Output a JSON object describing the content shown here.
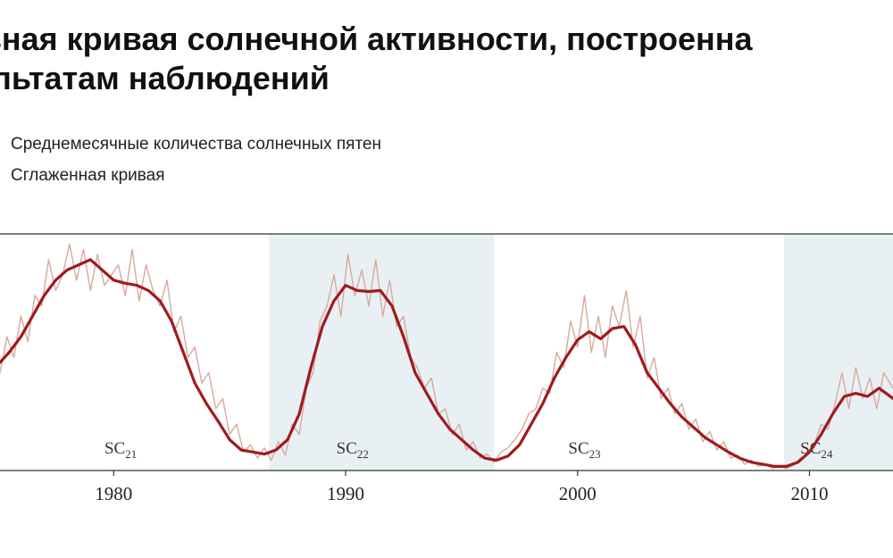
{
  "title_line1": "зная кривая солнечной активности, построенна",
  "title_line2": "льтатам наблюдений",
  "legend": {
    "raw": "Среднемесячные количества солнечных пятен",
    "smooth": "Сглаженная кривая"
  },
  "chart_data": {
    "type": "line",
    "title": "",
    "xlabel": "",
    "ylabel": "",
    "xlim": [
      1975.1,
      2013.6
    ],
    "ylim": [
      0,
      230
    ],
    "grid": false,
    "x_ticks": [
      1980,
      1990,
      2000,
      2010
    ],
    "colors": {
      "smoothed": "#9e1b1f",
      "monthly": "#d7a99c",
      "band": "#e9f0f4",
      "axis": "#333333"
    },
    "cycle_bands": [
      [
        1986.7,
        1996.4
      ],
      [
        2008.9,
        2013.6
      ]
    ],
    "cycles": [
      {
        "base": "SC",
        "sub": "21",
        "x": 1980.3
      },
      {
        "base": "SC",
        "sub": "22",
        "x": 1990.3
      },
      {
        "base": "SC",
        "sub": "23",
        "x": 2000.3
      },
      {
        "base": "SC",
        "sub": "24",
        "x": 2010.3
      }
    ],
    "series": [
      {
        "key": "smoothed",
        "x": [
          1975.1,
          1975.5,
          1976.0,
          1976.5,
          1977.0,
          1977.5,
          1978.0,
          1978.5,
          1979.0,
          1979.5,
          1980.0,
          1980.5,
          1981.0,
          1981.5,
          1982.0,
          1982.5,
          1983.0,
          1983.5,
          1984.0,
          1984.5,
          1985.0,
          1985.5,
          1986.0,
          1986.5,
          1987.0,
          1987.5,
          1988.0,
          1988.5,
          1989.0,
          1989.5,
          1990.0,
          1990.5,
          1991.0,
          1991.5,
          1992.0,
          1992.5,
          1993.0,
          1993.5,
          1994.0,
          1994.5,
          1995.0,
          1995.5,
          1996.0,
          1996.5,
          1997.0,
          1997.5,
          1998.0,
          1998.5,
          1999.0,
          1999.5,
          2000.0,
          2000.5,
          2001.0,
          2001.5,
          2002.0,
          2002.5,
          2003.0,
          2003.5,
          2004.0,
          2004.5,
          2005.0,
          2005.5,
          2006.0,
          2006.5,
          2007.0,
          2007.5,
          2008.0,
          2008.5,
          2009.0,
          2009.5,
          2010.0,
          2010.5,
          2011.0,
          2011.5,
          2012.0,
          2012.5,
          2013.0,
          2013.6
        ],
        "values": [
          105,
          115,
          130,
          150,
          170,
          185,
          195,
          200,
          205,
          195,
          185,
          182,
          180,
          175,
          165,
          145,
          115,
          85,
          65,
          48,
          30,
          20,
          18,
          16,
          20,
          30,
          55,
          100,
          140,
          165,
          180,
          175,
          174,
          175,
          160,
          130,
          95,
          75,
          55,
          40,
          30,
          20,
          12,
          10,
          14,
          25,
          45,
          65,
          90,
          110,
          127,
          135,
          128,
          138,
          140,
          122,
          95,
          80,
          65,
          52,
          42,
          32,
          25,
          18,
          12,
          8,
          6,
          4,
          4,
          8,
          18,
          35,
          55,
          72,
          75,
          72,
          80,
          70
        ]
      },
      {
        "key": "monthly",
        "x": [
          1975.1,
          1975.4,
          1975.7,
          1976.0,
          1976.3,
          1976.6,
          1976.9,
          1977.2,
          1977.5,
          1977.8,
          1978.1,
          1978.4,
          1978.7,
          1979.0,
          1979.3,
          1979.6,
          1979.9,
          1980.2,
          1980.5,
          1980.8,
          1981.1,
          1981.4,
          1981.7,
          1982.0,
          1982.3,
          1982.6,
          1982.9,
          1983.2,
          1983.5,
          1983.8,
          1984.1,
          1984.4,
          1984.7,
          1985.0,
          1985.3,
          1985.6,
          1985.9,
          1986.2,
          1986.5,
          1986.8,
          1987.1,
          1987.4,
          1987.7,
          1988.0,
          1988.3,
          1988.6,
          1988.9,
          1989.2,
          1989.5,
          1989.8,
          1990.1,
          1990.4,
          1990.7,
          1991.0,
          1991.3,
          1991.6,
          1991.9,
          1992.2,
          1992.5,
          1992.8,
          1993.1,
          1993.4,
          1993.7,
          1994.0,
          1994.3,
          1994.6,
          1994.9,
          1995.2,
          1995.5,
          1995.8,
          1996.1,
          1996.4,
          1996.7,
          1997.0,
          1997.3,
          1997.6,
          1997.9,
          1998.2,
          1998.5,
          1998.8,
          1999.1,
          1999.4,
          1999.7,
          2000.0,
          2000.3,
          2000.6,
          2000.9,
          2001.2,
          2001.5,
          2001.8,
          2002.1,
          2002.4,
          2002.7,
          2003.0,
          2003.3,
          2003.6,
          2003.9,
          2004.2,
          2004.5,
          2004.8,
          2005.1,
          2005.4,
          2005.7,
          2006.0,
          2006.3,
          2006.6,
          2006.9,
          2007.2,
          2007.5,
          2007.8,
          2008.1,
          2008.4,
          2008.7,
          2009.0,
          2009.3,
          2009.6,
          2009.9,
          2010.2,
          2010.5,
          2010.8,
          2011.1,
          2011.4,
          2011.7,
          2012.0,
          2012.3,
          2012.6,
          2012.9,
          2013.2,
          2013.6
        ],
        "values": [
          95,
          130,
          110,
          150,
          125,
          170,
          160,
          205,
          175,
          190,
          220,
          185,
          215,
          175,
          210,
          180,
          190,
          200,
          170,
          215,
          165,
          200,
          175,
          160,
          185,
          135,
          150,
          110,
          120,
          85,
          95,
          60,
          70,
          35,
          45,
          18,
          25,
          12,
          22,
          10,
          28,
          15,
          45,
          35,
          80,
          95,
          145,
          160,
          190,
          150,
          210,
          170,
          195,
          160,
          205,
          150,
          185,
          140,
          150,
          110,
          100,
          80,
          90,
          55,
          60,
          35,
          45,
          20,
          28,
          12,
          16,
          8,
          18,
          22,
          30,
          40,
          55,
          60,
          80,
          75,
          115,
          100,
          145,
          120,
          170,
          115,
          150,
          110,
          160,
          140,
          175,
          120,
          150,
          90,
          110,
          70,
          80,
          55,
          65,
          40,
          50,
          28,
          38,
          20,
          28,
          12,
          15,
          6,
          10,
          4,
          6,
          2,
          4,
          2,
          5,
          12,
          15,
          25,
          45,
          40,
          65,
          95,
          60,
          100,
          70,
          90,
          60,
          95,
          80
        ]
      }
    ]
  }
}
